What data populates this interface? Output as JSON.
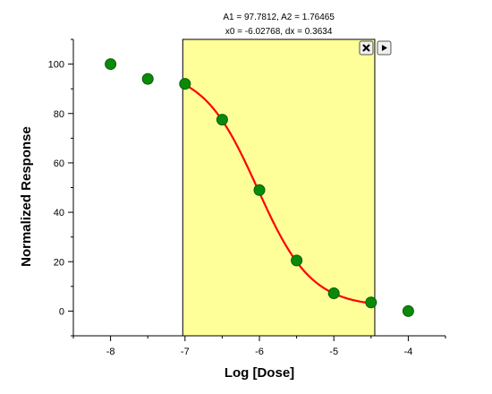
{
  "chart_data": {
    "type": "scatter",
    "xlabel": "Log [Dose]",
    "ylabel": "Normalized Response",
    "xlim": [
      -8.5,
      -3.5
    ],
    "ylim": [
      -10,
      110
    ],
    "x_ticks": [
      -8,
      -7,
      -6,
      -5,
      -4
    ],
    "x_tick_labels": [
      "-8",
      "-7",
      "-6",
      "-5",
      "-4"
    ],
    "y_ticks": [
      0,
      20,
      40,
      60,
      80,
      100
    ],
    "y_tick_labels": [
      "0",
      "20",
      "40",
      "60",
      "80",
      "100"
    ],
    "grid": false,
    "series": [
      {
        "type": "scatter",
        "color": "#0a8a0a",
        "points": [
          {
            "x": -8.0,
            "y": 100
          },
          {
            "x": -7.5,
            "y": 94
          },
          {
            "x": -7.0,
            "y": 92
          },
          {
            "x": -6.5,
            "y": 77.5
          },
          {
            "x": -6.0,
            "y": 49
          },
          {
            "x": -5.5,
            "y": 20.5
          },
          {
            "x": -5.0,
            "y": 7.2
          },
          {
            "x": -4.5,
            "y": 3.5
          },
          {
            "x": -4.0,
            "y": 0
          }
        ]
      },
      {
        "type": "fit-curve",
        "model": "Boltzmann",
        "color": "#ff0000",
        "x_range": [
          -7.0,
          -4.5
        ],
        "params": {
          "A1": 97.7812,
          "A2": 1.76465,
          "x0": -6.02768,
          "dx": 0.3634
        }
      }
    ],
    "fit_range": {
      "x": [
        -7.03,
        -4.45
      ],
      "fill": "#ffff99"
    },
    "annotation_lines": [
      "A1 = 97.7812, A2 = 1.76465",
      "x0 = -6.02768, dx = 0.3634"
    ]
  },
  "controls": {
    "close_icon": "close-icon",
    "expand_icon": "play-arrow-icon"
  }
}
